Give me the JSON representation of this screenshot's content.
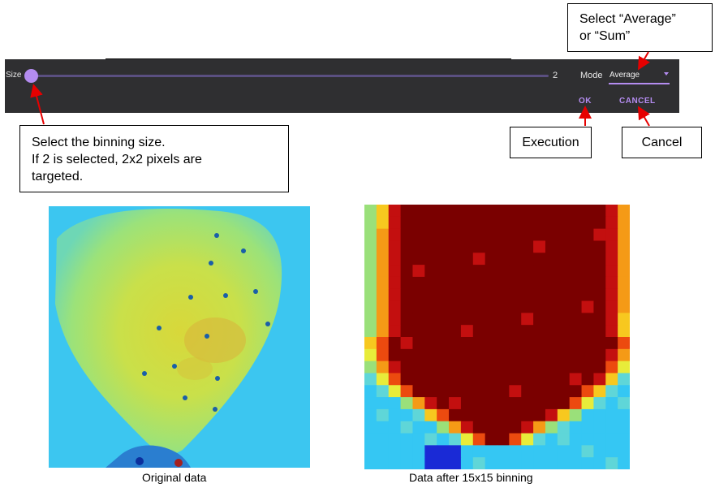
{
  "panel": {
    "size_label": "Size",
    "size_value": "2",
    "slider_level": 0.0,
    "mode_label": "Mode",
    "mode_value": "Average",
    "ok_label": "OK",
    "cancel_label": "CANCEL",
    "accent_color": "#b48cf0",
    "background_color": "#2f2f31"
  },
  "callouts": {
    "size_line1": "Select the binning size.",
    "size_line2": "If 2 is selected, 2x2 pixels are",
    "size_line3": "targeted.",
    "mode_line1": "Select “Average”",
    "mode_line2": "or “Sum”",
    "execution": "Execution",
    "cancel": "Cancel"
  },
  "annotation_color": "#e60000",
  "captions": {
    "original": "Original data",
    "binned": "Data after 15x15 binning"
  }
}
